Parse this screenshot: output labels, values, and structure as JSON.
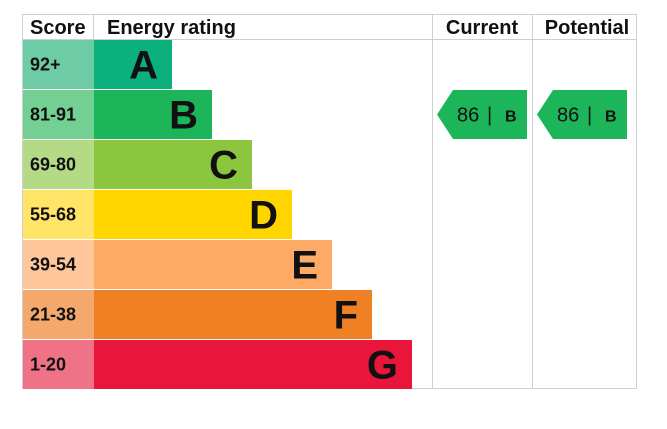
{
  "chart_data": {
    "type": "bar",
    "headers": {
      "score": "Score",
      "rating": "Energy rating",
      "current": "Current",
      "potential": "Potential"
    },
    "bands": [
      {
        "score": "92+",
        "letter": "A",
        "color": "#0bb07c",
        "score_bg": "#6dcca5"
      },
      {
        "score": "81-91",
        "letter": "B",
        "color": "#1db55a",
        "score_bg": "#74cf93"
      },
      {
        "score": "69-80",
        "letter": "C",
        "color": "#8cc63f",
        "score_bg": "#b5da86"
      },
      {
        "score": "55-68",
        "letter": "D",
        "color": "#ffd500",
        "score_bg": "#ffe467"
      },
      {
        "score": "39-54",
        "letter": "E",
        "color": "#fcaa65",
        "score_bg": "#fdc69b"
      },
      {
        "score": "21-38",
        "letter": "F",
        "color": "#ef8023",
        "score_bg": "#f4a86c"
      },
      {
        "score": "1-20",
        "letter": "G",
        "color": "#e9153b",
        "score_bg": "#f07286"
      }
    ],
    "current": {
      "value": 86,
      "rating": "B",
      "separator": "|",
      "color": "#1db55a"
    },
    "potential": {
      "value": 86,
      "rating": "B",
      "separator": "|",
      "color": "#1db55a"
    }
  }
}
